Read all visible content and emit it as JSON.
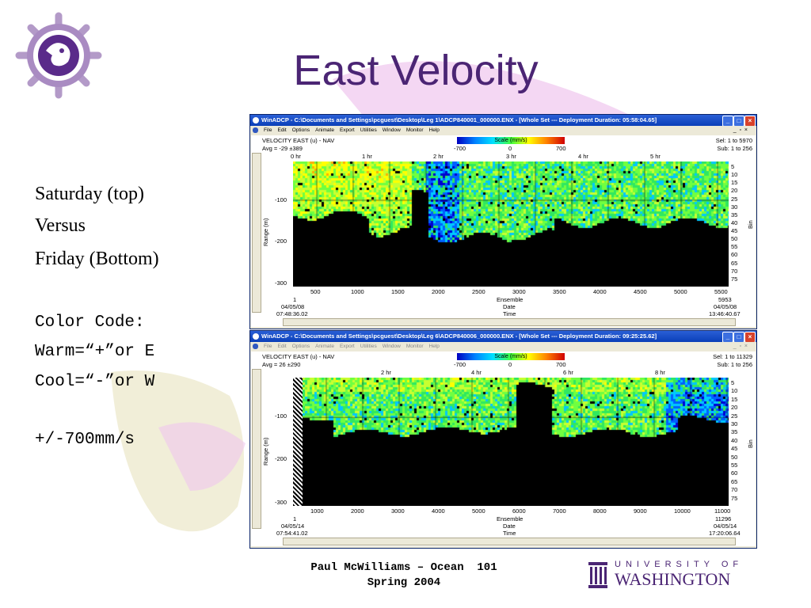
{
  "slide": {
    "title": "East Velocity",
    "left_text": {
      "line1": "Saturday (top)",
      "line2": "Versus",
      "line3": "Friday (Bottom)",
      "code_title": "Color Code:",
      "warm": "Warm=“+”or E",
      "cool": "Cool=“-”or W",
      "range": "+/-700mm/s"
    },
    "footer": {
      "line1": "Paul McWilliams – Ocean  101",
      "line2": "Spring 2004"
    },
    "logo": {
      "univ": "UNIVERSITY OF",
      "name": "WASHINGTON"
    }
  },
  "windows": [
    {
      "title": "WinADCP - C:\\Documents and Settings\\pcguest\\Desktop\\Leg 1\\ADCP840001_000000.ENX - [Whole Set --- Deployment Duration: 05:58:04.65]",
      "menu": [
        "File",
        "Edit",
        "Options",
        "Animate",
        "Export",
        "Utilities",
        "Window",
        "Monitor",
        "Help"
      ],
      "plot_title": "VELOCITY EAST (u) - NAV",
      "avg": "Avg = -29 ±389",
      "scale_label": "Scale (mm/s)",
      "scale_ticks": [
        "-700",
        "0",
        "700"
      ],
      "sel": "Sel: 1 to 5970",
      "sub": "Sub: 1 to 256",
      "hours": [
        "0 hr",
        "1 hr",
        "2 hr",
        "3 hr",
        "4 hr",
        "5 hr"
      ],
      "y_label": "Range (m)",
      "y_ticks": [
        "-100",
        "-200",
        "-300"
      ],
      "bins": [
        "5",
        "10",
        "15",
        "20",
        "25",
        "30",
        "35",
        "40",
        "45",
        "50",
        "55",
        "60",
        "65",
        "70",
        "75"
      ],
      "bin_label": "Bin",
      "x_ticks": [
        "500",
        "1000",
        "1500",
        "2000",
        "2500",
        "3000",
        "3500",
        "4000",
        "4500",
        "5000",
        "5500"
      ],
      "x_title": "Ensemble",
      "date_title": "Date",
      "time_title": "Time",
      "left_ens": "1",
      "left_date": "04/05/08",
      "left_time": "07:48:36.02",
      "right_ens": "5953",
      "right_date": "04/05/08",
      "right_time": "13:46:40.67"
    },
    {
      "title": "WinADCP - C:\\Documents and Settings\\pcguest\\Desktop\\Leg 6\\ADCP840006_000000.ENX - [Whole Set --- Deployment Duration: 09:25:25.62]",
      "menu": [
        "File",
        "Edit",
        "Options",
        "Animate",
        "Export",
        "Utilities",
        "Window",
        "Monitor",
        "Help"
      ],
      "plot_title": "VELOCITY EAST (u) - NAV",
      "avg": "Avg = 26 ±290",
      "scale_label": "Scale (mm/s)",
      "scale_ticks": [
        "-700",
        "0",
        "700"
      ],
      "sel": "Sel: 1 to 11329",
      "sub": "Sub: 1 to 256",
      "hours": [
        "2 hr",
        "4 hr",
        "6 hr",
        "8 hr"
      ],
      "y_label": "Range (m)",
      "y_ticks": [
        "-100",
        "-200",
        "-300"
      ],
      "bins": [
        "5",
        "10",
        "15",
        "20",
        "25",
        "30",
        "35",
        "40",
        "45",
        "50",
        "55",
        "60",
        "65",
        "70",
        "75"
      ],
      "bin_label": "Bin",
      "x_ticks": [
        "1000",
        "2000",
        "3000",
        "4000",
        "5000",
        "6000",
        "7000",
        "8000",
        "9000",
        "10000",
        "11000"
      ],
      "x_title": "Ensemble",
      "date_title": "Date",
      "time_title": "Time",
      "left_ens": "1",
      "left_date": "04/05/14",
      "left_time": "07:54:41.02",
      "right_ens": "11296",
      "right_date": "04/05/14",
      "right_time": "17:20:06.64"
    }
  ],
  "colors": {
    "title_purple": "#4b2574",
    "xp_blue": "#0a3fb8",
    "plot_bg": "#000000"
  }
}
